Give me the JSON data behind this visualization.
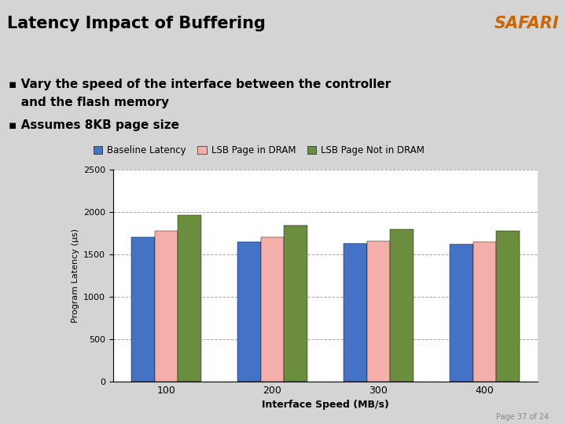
{
  "title": "Latency Impact of Buffering",
  "safari_label": "SAFARI",
  "bullet1_line1": "▪ Vary the speed of the interface between the controller",
  "bullet1_line2": "   and the flash memory",
  "bullet2": "▪ Assumes 8KB page size",
  "categories": [
    "100",
    "200",
    "300",
    "400"
  ],
  "xlabel": "Interface Speed (MB/s)",
  "ylabel": "Program Latency (μs)",
  "ylim": [
    0,
    2500
  ],
  "yticks": [
    0,
    500,
    1000,
    1500,
    2000,
    2500
  ],
  "series": {
    "Baseline Latency": [
      1700,
      1650,
      1630,
      1625
    ],
    "LSB Page in DRAM": [
      1780,
      1700,
      1660,
      1650
    ],
    "LSB Page Not in DRAM": [
      1960,
      1840,
      1800,
      1780
    ]
  },
  "colors": {
    "Baseline Latency": "#4472C4",
    "LSB Page in DRAM": "#F4AFAB",
    "LSB Page Not in DRAM": "#6B8E3E"
  },
  "background_slide": "#D4D4D4",
  "background_chart": "#FFFFFF",
  "title_color": "#000000",
  "safari_color": "#CC6600",
  "bar_width": 0.22,
  "grid_color": "#AAAAAA",
  "page_footer": "Page 37 of 24",
  "title_bg": "#C0C0C0"
}
